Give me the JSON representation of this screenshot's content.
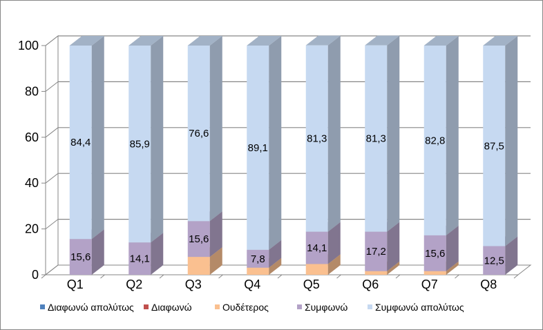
{
  "chart_data": {
    "type": "bar",
    "stacked": true,
    "three_d": true,
    "title": "",
    "xlabel": "",
    "ylabel": "",
    "ylim": [
      0,
      100
    ],
    "yticks": [
      0,
      20,
      40,
      60,
      80,
      100
    ],
    "grid": true,
    "legend_position": "bottom",
    "categories": [
      "Q1",
      "Q2",
      "Q3",
      "Q4",
      "Q5",
      "Q6",
      "Q7",
      "Q8"
    ],
    "series": [
      {
        "name": "Διαφωνώ απολύτως",
        "color": "#4F81BD",
        "values": [
          0,
          0,
          0,
          0,
          0,
          0,
          0,
          0
        ],
        "labels": [
          "",
          "",
          "",
          "",
          "",
          "",
          "",
          ""
        ]
      },
      {
        "name": "Διαφωνώ",
        "color": "#C0504D",
        "values": [
          0,
          0,
          0,
          0,
          0,
          0,
          0,
          0
        ],
        "labels": [
          "",
          "",
          "",
          "",
          "",
          "",
          "",
          ""
        ]
      },
      {
        "name": "Ουδέτερος",
        "color": "#FAC090",
        "values": [
          0,
          0,
          7.8,
          3.1,
          4.7,
          1.6,
          1.6,
          0
        ],
        "labels": [
          "",
          "",
          "",
          "",
          "",
          "",
          "",
          ""
        ]
      },
      {
        "name": "Συμφωνώ",
        "color": "#B3A2C7",
        "values": [
          15.6,
          14.1,
          15.6,
          7.8,
          14.1,
          17.2,
          15.6,
          12.5
        ],
        "labels": [
          "15,6",
          "14,1",
          "15,6",
          "7,8",
          "14,1",
          "17,2",
          "15,6",
          "12,5"
        ]
      },
      {
        "name": "Συμφωνώ απολύτως",
        "color": "#C6D9F1",
        "values": [
          84.4,
          85.9,
          76.6,
          89.1,
          81.3,
          81.3,
          82.8,
          87.5
        ],
        "labels": [
          "84,4",
          "85,9",
          "76,6",
          "89,1",
          "81,3",
          "81,3",
          "82,8",
          "87,5"
        ]
      }
    ]
  }
}
